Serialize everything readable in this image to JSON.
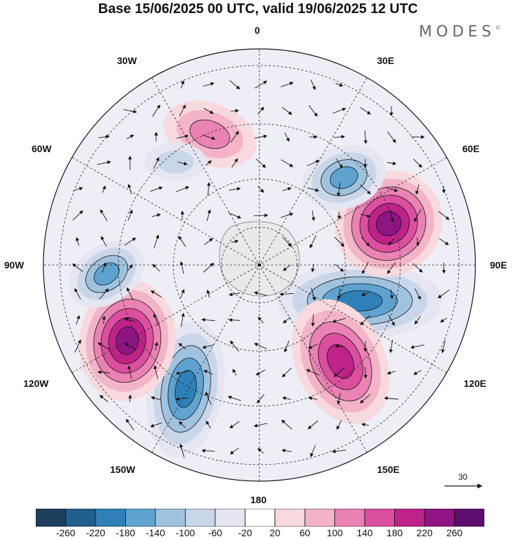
{
  "header": {
    "title": "Base 15/06/2025 00 UTC, valid 19/06/2025 12 UTC",
    "brand": "MODES",
    "brand_mark": "©"
  },
  "map": {
    "projection": "polar-stereographic-south",
    "longitude_labels": {
      "top": "0",
      "bottom": "180",
      "left": "90W",
      "right": "90E",
      "nw_upper": "30W",
      "nw_lower": "60W",
      "ne_upper": "30E",
      "ne_lower": "60E",
      "sw_upper": "120W",
      "sw_lower": "150W",
      "se_upper": "120E",
      "se_lower": "150E"
    },
    "vector_reference": {
      "value": "30"
    }
  },
  "colorbar": {
    "labels": [
      "-260",
      "-220",
      "-180",
      "-140",
      "-100",
      "-60",
      "-20",
      "20",
      "60",
      "100",
      "140",
      "180",
      "220",
      "260"
    ],
    "colors": [
      "#1c3f5e",
      "#1f5f8b",
      "#2f80b8",
      "#5ea3cf",
      "#9fc3df",
      "#c9d6ea",
      "#e6e6f2",
      "#ffffff",
      "#f8d9dd",
      "#f2b4c6",
      "#ea82b3",
      "#dc4f9f",
      "#bd2388",
      "#8e1583",
      "#5d0e6e"
    ]
  },
  "anomalies": [
    {
      "sign": "neg",
      "strength": 5,
      "label": "deep trough near 100E"
    },
    {
      "sign": "pos",
      "strength": 6,
      "label": "strong ridge near 80E"
    },
    {
      "sign": "neg",
      "strength": 4,
      "label": "trough near 45E"
    },
    {
      "sign": "pos",
      "strength": 5,
      "label": "ridge near 130E-160E"
    },
    {
      "sign": "neg",
      "strength": 5,
      "label": "trough near 140W"
    },
    {
      "sign": "pos",
      "strength": 6,
      "label": "ridge near 115W"
    },
    {
      "sign": "neg",
      "strength": 4,
      "label": "trough near 95W"
    },
    {
      "sign": "pos",
      "strength": 3,
      "label": "ridge near 20W"
    },
    {
      "sign": "neg",
      "strength": 2,
      "label": "trough near 50W"
    }
  ]
}
